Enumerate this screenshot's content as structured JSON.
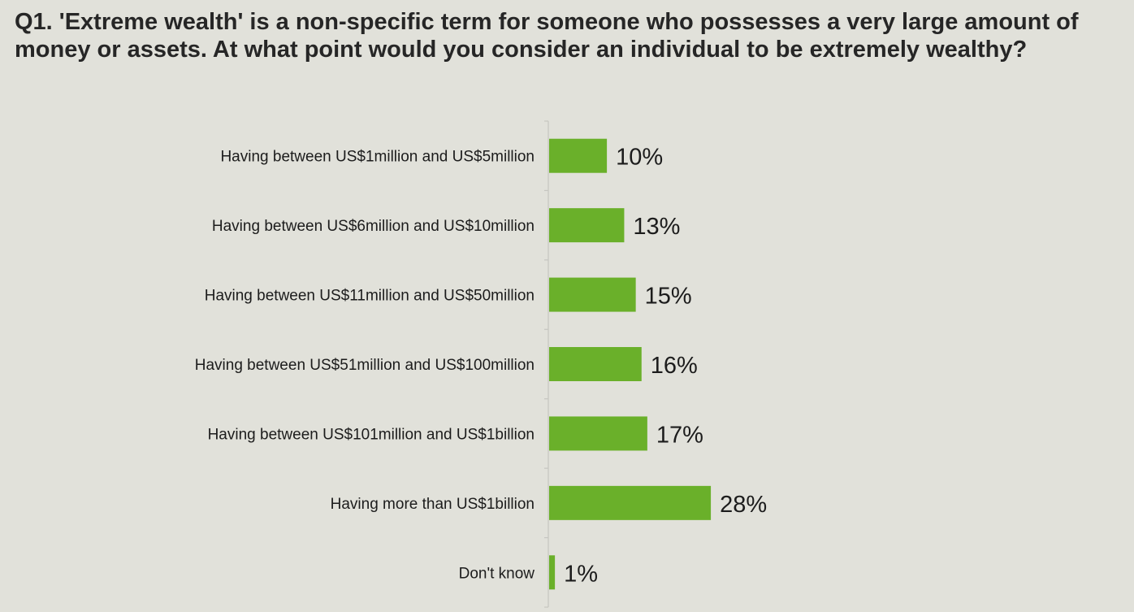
{
  "title": "Q1. 'Extreme wealth' is a non-specific term for someone who possesses a very large amount of money or assets. At what point would you consider an individual to be extremely wealthy?",
  "chart_data": {
    "type": "bar",
    "orientation": "horizontal",
    "categories": [
      "Having between US$1million and US$5million",
      "Having between US$6million and US$10million",
      "Having between US$11million and US$50million",
      "Having between US$51million and US$100million",
      "Having between US$101million and US$1billion",
      "Having more than US$1billion",
      "Don't know"
    ],
    "values": [
      10,
      13,
      15,
      16,
      17,
      28,
      1
    ],
    "data_labels": [
      "10%",
      "13%",
      "15%",
      "16%",
      "17%",
      "28%",
      "1%"
    ],
    "unit": "%",
    "bar_color": "#6ab02a",
    "axis_color": "#c6c6c0",
    "grid": false,
    "legend": false
  }
}
